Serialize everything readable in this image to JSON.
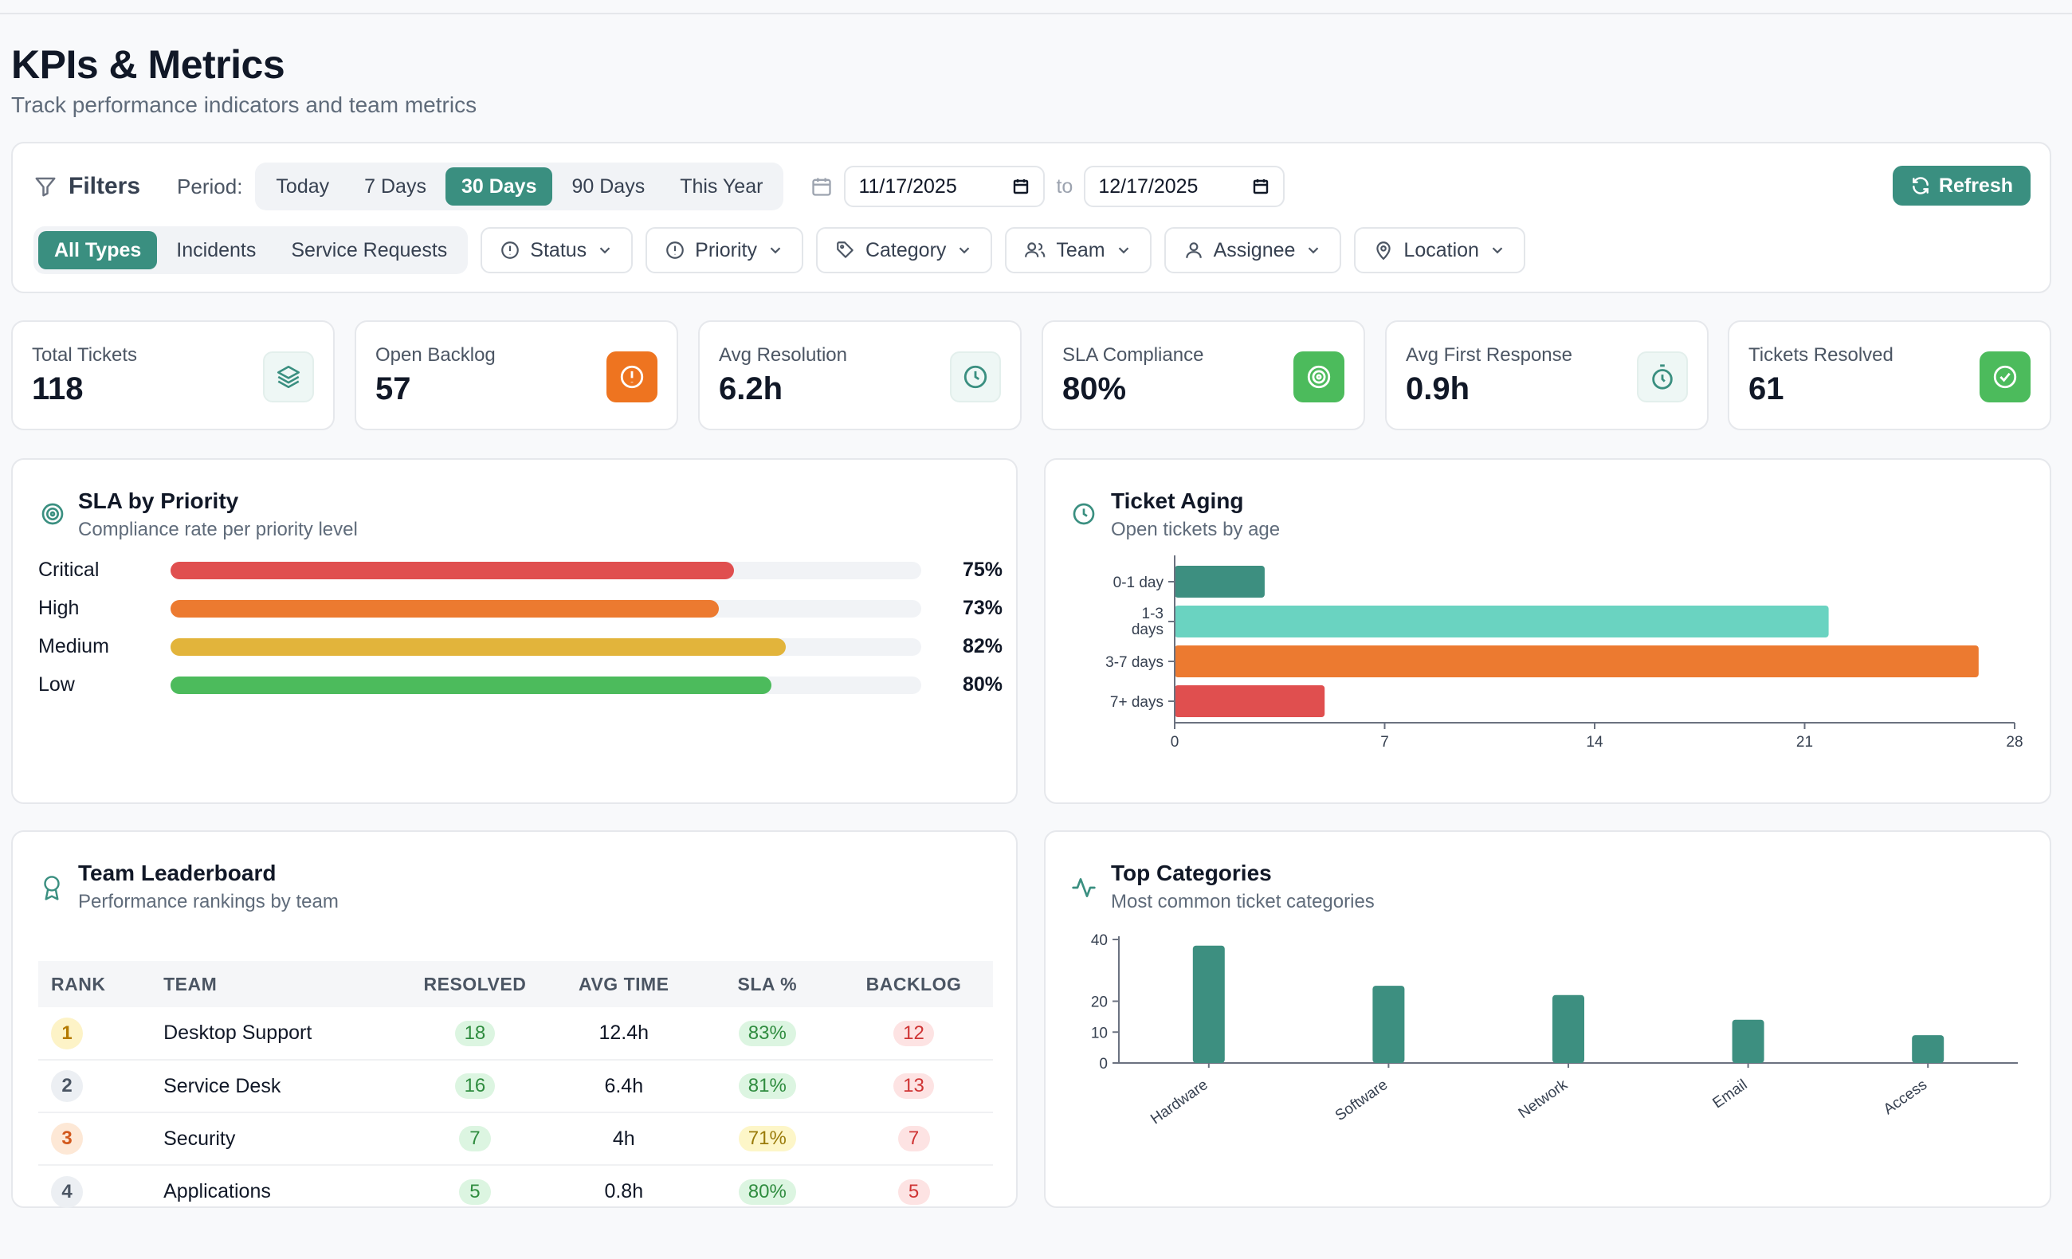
{
  "header": {
    "title": "KPIs & Metrics",
    "subtitle": "Track performance indicators and team metrics"
  },
  "filters": {
    "label": "Filters",
    "period_label": "Period:",
    "periods": [
      "Today",
      "7 Days",
      "30 Days",
      "90 Days",
      "This Year"
    ],
    "active_period": "30 Days",
    "date_from": "11/17/2025",
    "to_label": "to",
    "date_to": "12/17/2025",
    "refresh_label": "Refresh",
    "types": [
      "All Types",
      "Incidents",
      "Service Requests"
    ],
    "active_type": "All Types",
    "dropdowns": {
      "status": "Status",
      "priority": "Priority",
      "category": "Category",
      "team": "Team",
      "assignee": "Assignee",
      "location": "Location"
    }
  },
  "kpis": [
    {
      "label": "Total Tickets",
      "value": "118",
      "icon": "layers-icon",
      "icon_bg": "#eef7f5",
      "icon_color": "#3a8f80"
    },
    {
      "label": "Open Backlog",
      "value": "57",
      "icon": "alert-circle-icon",
      "icon_bg": "#ee7420",
      "icon_color": "#ffffff"
    },
    {
      "label": "Avg Resolution",
      "value": "6.2h",
      "icon": "clock-icon",
      "icon_bg": "#eef7f5",
      "icon_color": "#3a8f80"
    },
    {
      "label": "SLA Compliance",
      "value": "80%",
      "icon": "target-icon",
      "icon_bg": "#4cbb5c",
      "icon_color": "#ffffff"
    },
    {
      "label": "Avg First Response",
      "value": "0.9h",
      "icon": "timer-icon",
      "icon_bg": "#eef7f5",
      "icon_color": "#3a8f80"
    },
    {
      "label": "Tickets Resolved",
      "value": "61",
      "icon": "check-circle-icon",
      "icon_bg": "#4cbb5c",
      "icon_color": "#ffffff"
    }
  ],
  "sla": {
    "title": "SLA by Priority",
    "subtitle": "Compliance rate per priority level",
    "rows": [
      {
        "name": "Critical",
        "pct_label": "75%",
        "value": 75,
        "color": "#e04f4f"
      },
      {
        "name": "High",
        "pct_label": "73%",
        "value": 73,
        "color": "#ec7a30"
      },
      {
        "name": "Medium",
        "pct_label": "82%",
        "value": 82,
        "color": "#e2b43b"
      },
      {
        "name": "Low",
        "pct_label": "80%",
        "value": 80,
        "color": "#4cbb5c"
      }
    ]
  },
  "aging": {
    "title": "Ticket Aging",
    "subtitle": "Open tickets by age"
  },
  "leaderboard": {
    "title": "Team Leaderboard",
    "subtitle": "Performance rankings by team",
    "columns": [
      "RANK",
      "TEAM",
      "RESOLVED",
      "AVG TIME",
      "SLA %",
      "BACKLOG"
    ],
    "rows": [
      {
        "rank": "1",
        "team": "Desktop Support",
        "resolved": "18",
        "avg_time": "12.4h",
        "sla": "83%",
        "backlog": "12",
        "rank_bg": "#fdf3c7",
        "rank_color": "#b47a00",
        "sla_bg": "#dcf5e1",
        "sla_color": "#2f8c3f"
      },
      {
        "rank": "2",
        "team": "Service Desk",
        "resolved": "16",
        "avg_time": "6.4h",
        "sla": "81%",
        "backlog": "13",
        "rank_bg": "#eceff3",
        "rank_color": "#4b5563",
        "sla_bg": "#dcf5e1",
        "sla_color": "#2f8c3f"
      },
      {
        "rank": "3",
        "team": "Security",
        "resolved": "7",
        "avg_time": "4h",
        "sla": "71%",
        "backlog": "7",
        "rank_bg": "#fde8d6",
        "rank_color": "#d2581c",
        "sla_bg": "#fdf6c8",
        "sla_color": "#9a7b0a"
      },
      {
        "rank": "4",
        "team": "Applications",
        "resolved": "5",
        "avg_time": "0.8h",
        "sla": "80%",
        "backlog": "5",
        "rank_bg": "#eceff3",
        "rank_color": "#4b5563",
        "sla_bg": "#dcf5e1",
        "sla_color": "#2f8c3f"
      }
    ]
  },
  "categories": {
    "title": "Top Categories",
    "subtitle": "Most common ticket categories"
  },
  "chart_data": [
    {
      "type": "bar",
      "orientation": "horizontal",
      "title": "Ticket Aging",
      "categories": [
        "0-1 day",
        "1-3 days",
        "3-7 days",
        "7+ days"
      ],
      "values": [
        3,
        21.8,
        26.8,
        5
      ],
      "colors": [
        "#3d8f80",
        "#6ad3c1",
        "#ec7a30",
        "#e04f4f"
      ],
      "xlim": [
        0,
        28
      ],
      "xticks": [
        0,
        7,
        14,
        21,
        28
      ],
      "grid": false
    },
    {
      "type": "bar",
      "title": "Top Categories",
      "categories": [
        "Hardware",
        "Software",
        "Network",
        "Email",
        "Access"
      ],
      "values": [
        38,
        25,
        22,
        14,
        9
      ],
      "color": "#3d8f80",
      "ylim": [
        0,
        40
      ],
      "yticks": [
        0,
        10,
        20,
        40
      ],
      "grid": false
    }
  ]
}
